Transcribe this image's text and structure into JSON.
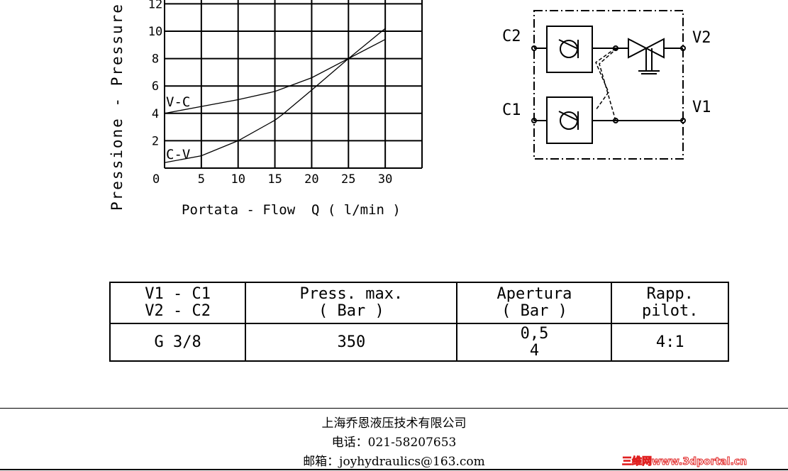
{
  "chart_data": {
    "type": "line",
    "xlabel": "Portata - Flow  Q ( l/min )",
    "ylabel": "Pressione - Pressure Δ",
    "x_ticks": [
      "0",
      "5",
      "10",
      "15",
      "20",
      "25",
      "30"
    ],
    "y_ticks": [
      "2",
      "4",
      "6",
      "8",
      "10",
      "12"
    ],
    "xlim": [
      0,
      35
    ],
    "ylim": [
      0,
      12
    ],
    "grid": true,
    "series": [
      {
        "name": "V-C",
        "x": [
          0,
          5,
          10,
          15,
          20,
          25,
          30
        ],
        "y": [
          4,
          4.5,
          5,
          5.6,
          6.6,
          8,
          9.4
        ]
      },
      {
        "name": "C-V",
        "x": [
          0,
          5,
          10,
          15,
          16,
          20,
          25,
          30
        ],
        "y": [
          0.4,
          0.9,
          2,
          3.5,
          3.9,
          5.7,
          8,
          10.2
        ]
      }
    ]
  },
  "circuit": {
    "ports": {
      "c2": "C2",
      "c1": "C1",
      "v2": "V2",
      "v1": "V1"
    }
  },
  "table": {
    "headers": [
      [
        "V1 - C1",
        "V2 - C2"
      ],
      [
        "Press. max.",
        "( Bar )"
      ],
      [
        "Apertura",
        "( Bar )"
      ],
      [
        "Rapp.",
        "pilot."
      ]
    ],
    "row": [
      [
        "G 3/8"
      ],
      [
        "350"
      ],
      [
        "0,5",
        "4"
      ],
      [
        "4:1"
      ]
    ]
  },
  "footer": {
    "company": "上海乔恩液压技术有限公司",
    "phone": "电话：021-58207653",
    "email": "邮箱：joyhydraulics@163.com"
  },
  "watermark": "三维网www.3dportal.cn"
}
